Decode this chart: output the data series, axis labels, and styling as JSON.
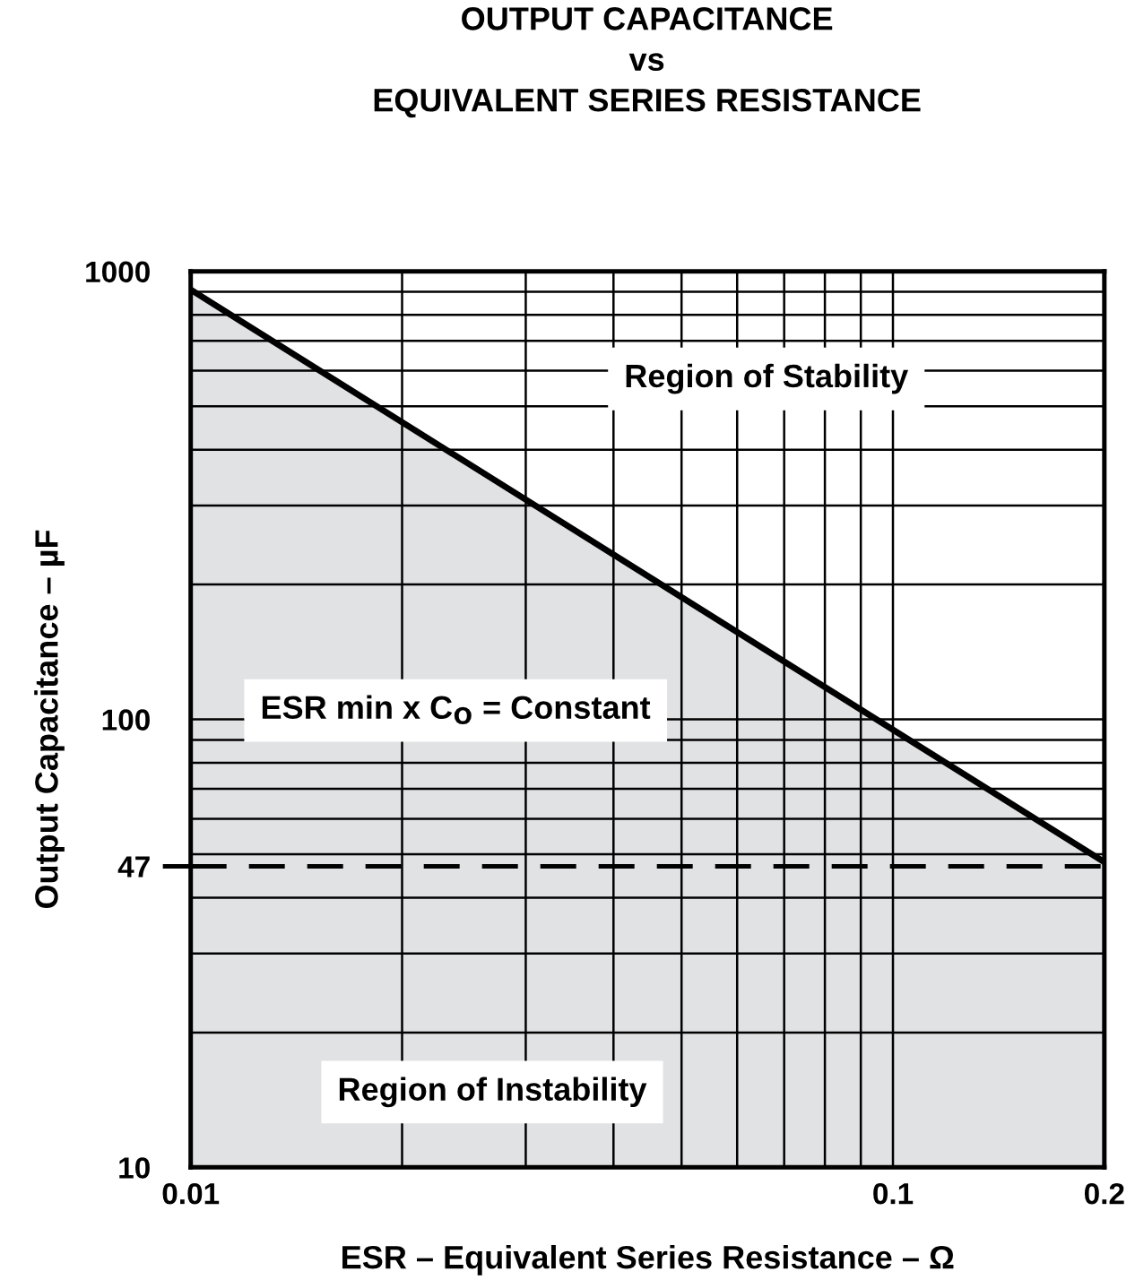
{
  "chart_data": {
    "type": "area",
    "title": "OUTPUT CAPACITANCE\nvs\nEQUIVALENT SERIES RESISTANCE",
    "xlabel": "ESR – Equivalent Series Resistance – Ω",
    "ylabel": "Output Capacitance – µF",
    "x": [
      0.01,
      0.2
    ],
    "series": [
      {
        "color": "#e1e2e4",
        "values": [
          910,
          48
        ]
      }
    ],
    "log": "xy",
    "xlim": [
      0.01,
      0.2
    ],
    "ylim": [
      10,
      1000
    ],
    "xticks": [
      0.01,
      0.1,
      0.2
    ],
    "yticks": [
      10,
      47,
      100,
      1000
    ],
    "ref_lines": [
      {
        "axis": "y",
        "value": 47,
        "line_style": "dashed",
        "color": "#000000"
      }
    ],
    "annotations": [
      "Region of Stability",
      "ESR min x C$_{O}$ = Constant",
      "Region of Instability"
    ],
    "grid": true
  }
}
